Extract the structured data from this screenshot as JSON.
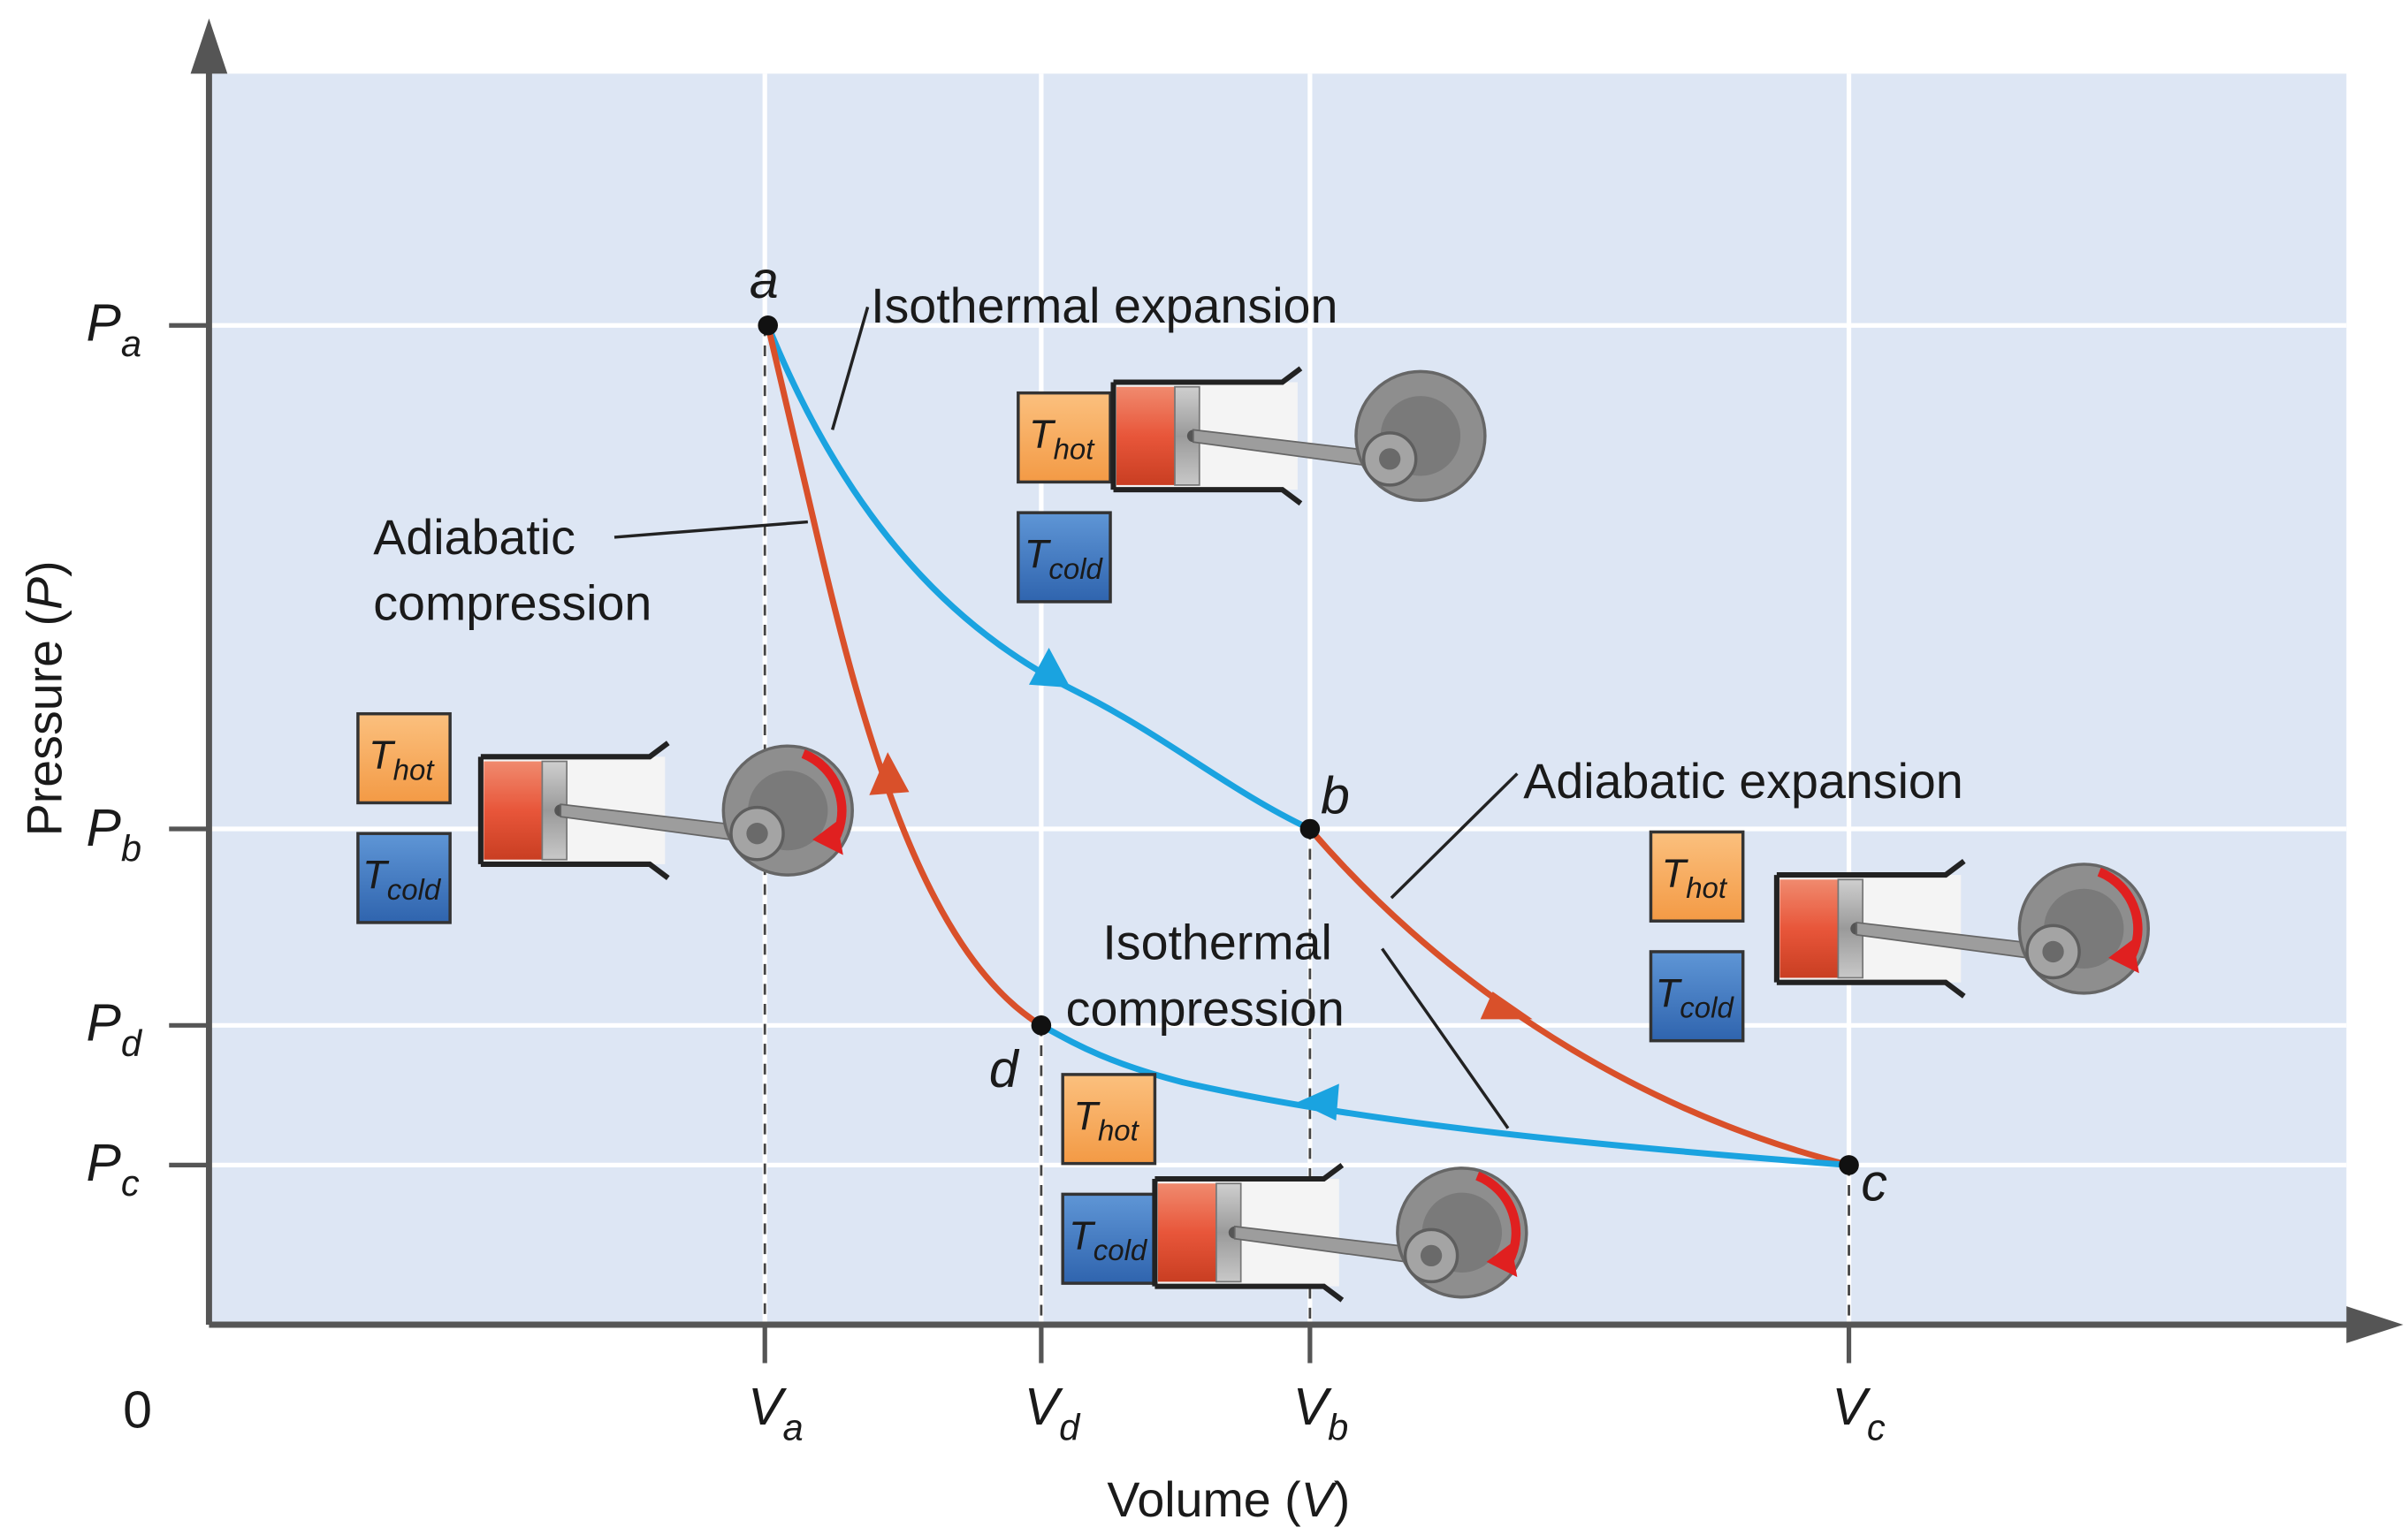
{
  "axes": {
    "y_axis_label": "Pressure (",
    "y_axis_var": "P",
    "y_axis_close": ")",
    "x_axis_label": "Volume (",
    "x_axis_var": "V",
    "x_axis_close": ")",
    "origin": "0",
    "pressure_ticks": [
      {
        "main": "P",
        "sub": "a"
      },
      {
        "main": "P",
        "sub": "b"
      },
      {
        "main": "P",
        "sub": "d"
      },
      {
        "main": "P",
        "sub": "c"
      }
    ],
    "volume_ticks": [
      {
        "main": "V",
        "sub": "a"
      },
      {
        "main": "V",
        "sub": "d"
      },
      {
        "main": "V",
        "sub": "b"
      },
      {
        "main": "V",
        "sub": "c"
      }
    ]
  },
  "points": {
    "a": "a",
    "b": "b",
    "c": "c",
    "d": "d"
  },
  "processes": {
    "isothermal_expansion": "Isothermal expansion",
    "adiabatic_expansion": "Adiabatic expansion",
    "isothermal_compression_line1": "Isothermal",
    "isothermal_compression_line2": "compression",
    "adiabatic_compression_line1": "Adiabatic",
    "adiabatic_compression_line2": "compression"
  },
  "reservoirs": {
    "hot": {
      "main": "T",
      "sub": "hot"
    },
    "cold": {
      "main": "T",
      "sub": "cold"
    }
  },
  "colors": {
    "plot_background": "#dde6f4",
    "grid": "#ffffff",
    "isothermal": "#1aa3e0",
    "adiabatic": "#d9502a",
    "hot_reservoir": "#f7a556",
    "cold_reservoir": "#3f7ac4",
    "gas": "#e8563a",
    "axis": "#555555"
  }
}
